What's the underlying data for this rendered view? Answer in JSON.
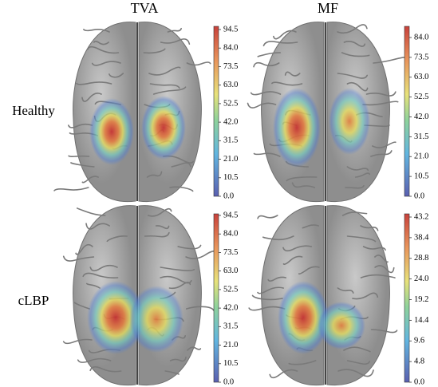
{
  "column_titles": [
    "TVA",
    "MF"
  ],
  "row_labels": [
    "Healthy",
    "cLBP"
  ],
  "panels": [
    {
      "colorbar": {
        "tick_labels": [
          "0.0",
          "10.5",
          "21.0",
          "31.5",
          "42.0",
          "52.5",
          "63.0",
          "73.5",
          "84.0",
          "94.5"
        ]
      }
    },
    {
      "colorbar": {
        "tick_labels": [
          "0.0",
          "10.5",
          "21.0",
          "31.5",
          "42.0",
          "52.5",
          "63.0",
          "73.5",
          "84.0"
        ]
      }
    },
    {
      "colorbar": {
        "tick_labels": [
          "0.0",
          "10.5",
          "21.0",
          "31.5",
          "42.0",
          "52.5",
          "63.0",
          "73.5",
          "84.0",
          "94.5"
        ]
      }
    },
    {
      "colorbar": {
        "tick_labels": [
          "0.0",
          "4.8",
          "9.6",
          "14.4",
          "19.2",
          "24.0",
          "28.8",
          "38.4",
          "43.2"
        ]
      }
    }
  ]
}
